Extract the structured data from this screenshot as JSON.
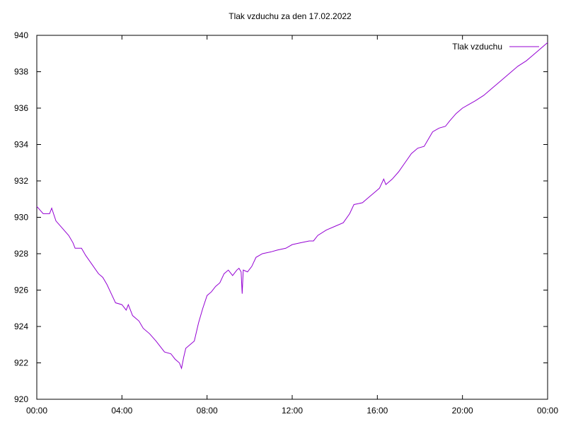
{
  "chart_data": {
    "type": "line",
    "title": "Tlak vzduchu za den 17.02.2022",
    "x": [
      0,
      0.3,
      0.6,
      0.7,
      0.9,
      1.2,
      1.5,
      1.7,
      1.8,
      2.1,
      2.3,
      2.6,
      2.9,
      3.1,
      3.3,
      3.5,
      3.7,
      4.0,
      4.2,
      4.3,
      4.5,
      4.8,
      5.0,
      5.3,
      5.6,
      5.8,
      6.0,
      6.3,
      6.5,
      6.7,
      6.8,
      6.9,
      7.0,
      7.2,
      7.4,
      7.6,
      7.8,
      8.0,
      8.2,
      8.4,
      8.6,
      8.8,
      9.0,
      9.2,
      9.4,
      9.5,
      9.6,
      9.65,
      9.7,
      9.9,
      10.1,
      10.3,
      10.6,
      11.0,
      11.3,
      11.7,
      12.0,
      12.4,
      12.8,
      13.0,
      13.2,
      13.6,
      14.0,
      14.4,
      14.7,
      14.9,
      15.3,
      15.6,
      15.9,
      16.1,
      16.3,
      16.4,
      16.7,
      17.0,
      17.3,
      17.6,
      17.9,
      18.2,
      18.4,
      18.6,
      18.9,
      19.2,
      19.4,
      19.7,
      20.0,
      20.3,
      20.6,
      21.0,
      21.4,
      21.7,
      22.0,
      22.3,
      22.6,
      23.0,
      23.3,
      23.6,
      24.0
    ],
    "series": [
      {
        "name": "Tlak vzduchu",
        "color": "#9400d3",
        "values": [
          930.6,
          930.2,
          930.2,
          930.5,
          929.8,
          929.4,
          929.0,
          928.6,
          928.3,
          928.3,
          927.9,
          927.4,
          926.9,
          926.7,
          926.3,
          925.8,
          925.3,
          925.2,
          924.9,
          925.2,
          924.6,
          924.3,
          923.9,
          923.6,
          923.2,
          922.9,
          922.6,
          922.5,
          922.2,
          922.0,
          921.7,
          922.3,
          922.8,
          923.0,
          923.2,
          924.2,
          925.0,
          925.7,
          925.9,
          926.2,
          926.4,
          926.9,
          927.1,
          926.8,
          927.1,
          927.2,
          927.0,
          925.8,
          927.1,
          927.0,
          927.3,
          927.8,
          928.0,
          928.1,
          928.2,
          928.3,
          928.5,
          928.6,
          928.7,
          928.7,
          929.0,
          929.3,
          929.5,
          929.7,
          930.2,
          930.7,
          930.8,
          931.1,
          931.4,
          931.6,
          932.1,
          931.8,
          932.1,
          932.5,
          933.0,
          933.5,
          933.8,
          933.9,
          934.3,
          934.7,
          934.9,
          935.0,
          935.3,
          935.7,
          936.0,
          936.2,
          936.4,
          936.7,
          937.1,
          937.4,
          937.7,
          938.0,
          938.3,
          938.6,
          938.9,
          939.2,
          939.6
        ]
      }
    ],
    "xlim": [
      0,
      24
    ],
    "xticks": [
      {
        "value": 0,
        "label": "00:00"
      },
      {
        "value": 4,
        "label": "04:00"
      },
      {
        "value": 8,
        "label": "08:00"
      },
      {
        "value": 12,
        "label": "12:00"
      },
      {
        "value": 16,
        "label": "16:00"
      },
      {
        "value": 20,
        "label": "20:00"
      },
      {
        "value": 24,
        "label": "00:00"
      }
    ],
    "ylim": [
      920,
      940
    ],
    "yticks": [
      920,
      922,
      924,
      926,
      928,
      930,
      932,
      934,
      936,
      938,
      940
    ],
    "legend": "top-right"
  }
}
